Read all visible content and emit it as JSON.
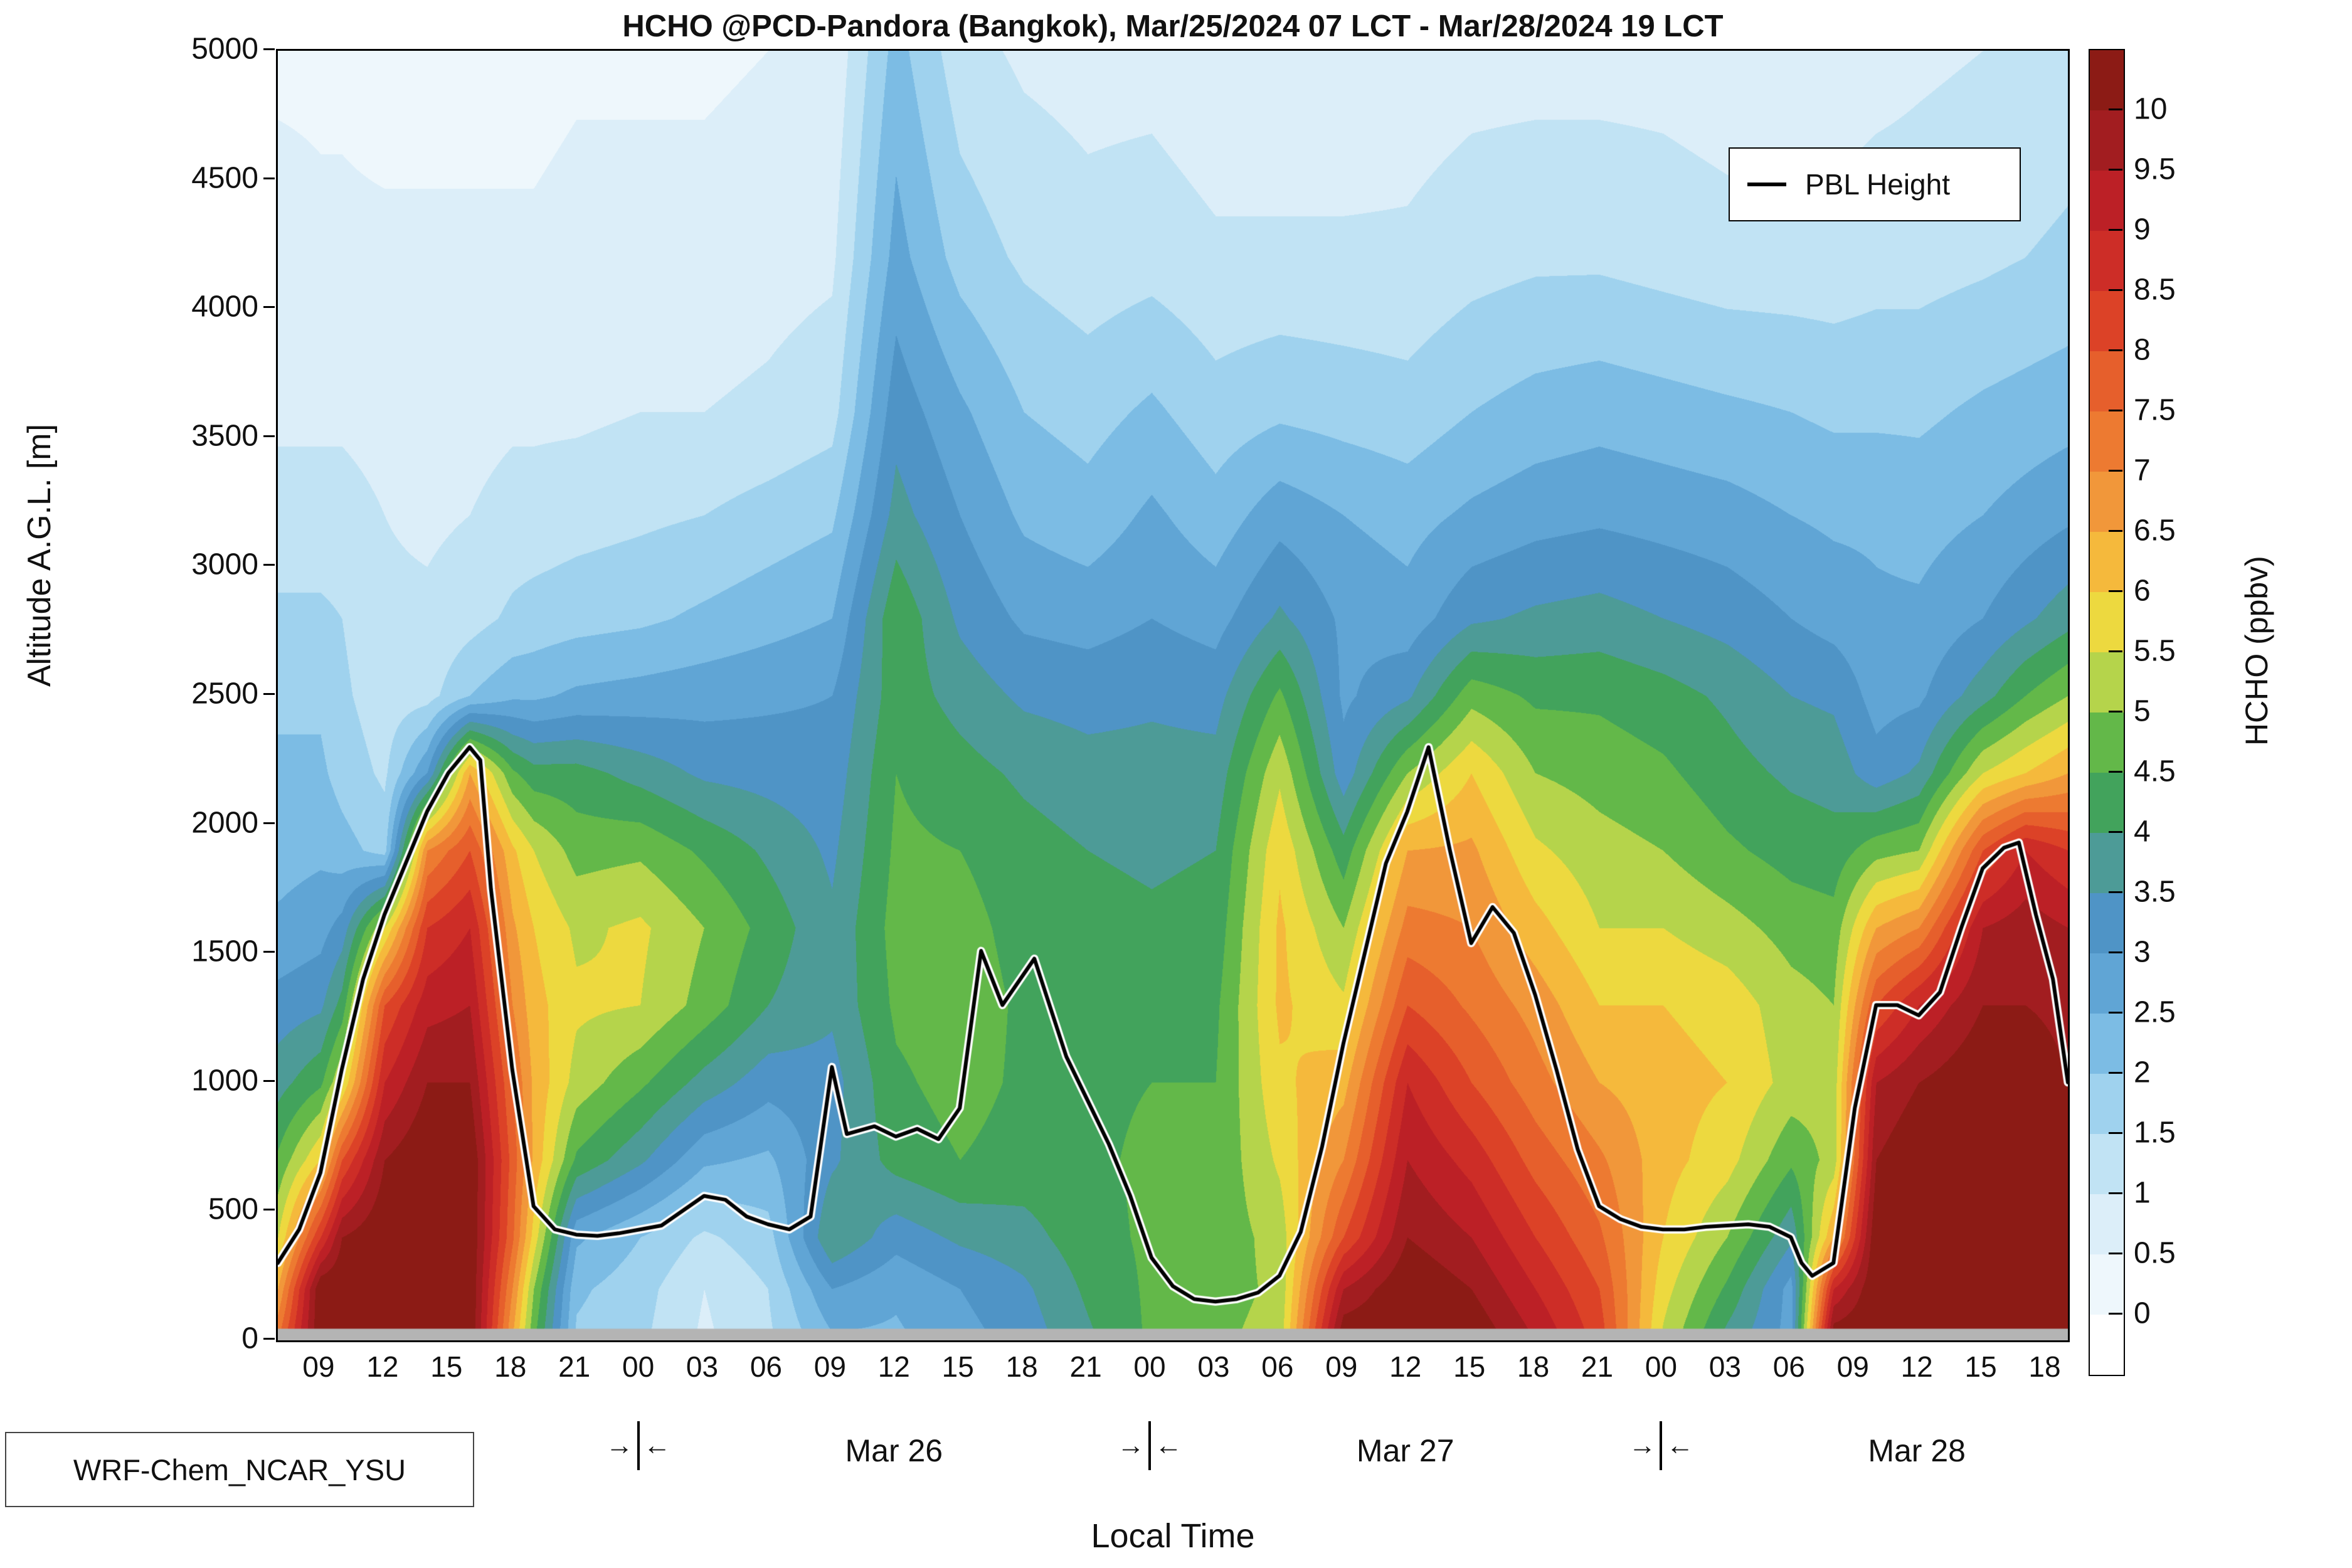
{
  "title": "HCHO @PCD-Pandora (Bangkok), Mar/25/2024 07 LCT - Mar/28/2024 19 LCT",
  "axes": {
    "y_label": "Altitude A.G.L. [m]",
    "x_label": "Local Time",
    "y_ticks": [
      0,
      500,
      1000,
      1500,
      2000,
      2500,
      3000,
      3500,
      4000,
      4500,
      5000
    ],
    "x_ticks": [
      {
        "t": 9,
        "label": "09"
      },
      {
        "t": 12,
        "label": "12"
      },
      {
        "t": 15,
        "label": "15"
      },
      {
        "t": 18,
        "label": "18"
      },
      {
        "t": 21,
        "label": "21"
      },
      {
        "t": 24,
        "label": "00"
      },
      {
        "t": 27,
        "label": "03"
      },
      {
        "t": 30,
        "label": "06"
      },
      {
        "t": 33,
        "label": "09"
      },
      {
        "t": 36,
        "label": "12"
      },
      {
        "t": 39,
        "label": "15"
      },
      {
        "t": 42,
        "label": "18"
      },
      {
        "t": 45,
        "label": "21"
      },
      {
        "t": 48,
        "label": "00"
      },
      {
        "t": 51,
        "label": "03"
      },
      {
        "t": 54,
        "label": "06"
      },
      {
        "t": 57,
        "label": "09"
      },
      {
        "t": 60,
        "label": "12"
      },
      {
        "t": 63,
        "label": "15"
      },
      {
        "t": 66,
        "label": "18"
      },
      {
        "t": 69,
        "label": "21"
      },
      {
        "t": 72,
        "label": "00"
      },
      {
        "t": 75,
        "label": "03"
      },
      {
        "t": 78,
        "label": "06"
      },
      {
        "t": 81,
        "label": "09"
      },
      {
        "t": 84,
        "label": "12"
      },
      {
        "t": 87,
        "label": "15"
      },
      {
        "t": 90,
        "label": "18"
      }
    ],
    "day_markers": [
      {
        "t": 24
      },
      {
        "t": 48
      },
      {
        "t": 72
      }
    ],
    "day_marker_left": "→",
    "day_marker_right": "←",
    "day_labels": [
      {
        "t": 36,
        "label": "Mar 26"
      },
      {
        "t": 60,
        "label": "Mar 27"
      },
      {
        "t": 84,
        "label": "Mar 28"
      }
    ]
  },
  "legend": {
    "label": "PBL Height",
    "line_color": "#000000"
  },
  "annotation": "WRF-Chem_NCAR_YSU",
  "colorbar": {
    "label": "HCHO (ppbv)",
    "ticks": [
      "0",
      "0.5",
      "1",
      "1.5",
      "2",
      "2.5",
      "3",
      "3.5",
      "4",
      "4.5",
      "5",
      "5.5",
      "6",
      "6.5",
      "7",
      "7.5",
      "8",
      "8.5",
      "9",
      "9.5",
      "10"
    ],
    "colors_bottom_to_top": [
      "#ffffff",
      "#eef7fc",
      "#dceef9",
      "#c1e3f4",
      "#9fd2ee",
      "#7cbce4",
      "#60a5d5",
      "#4f94c6",
      "#4d9b97",
      "#42a35c",
      "#63b849",
      "#b5d44b",
      "#edd93f",
      "#f5b93c",
      "#f1973a",
      "#ed7a31",
      "#e65f2c",
      "#dc4227",
      "#cd2d27",
      "#bc2026",
      "#a21d20",
      "#8c1b15"
    ]
  },
  "chart_data": {
    "type": "heatmap",
    "title": "HCHO @PCD-Pandora (Bangkok), Mar/25/2024 07 LCT - Mar/28/2024 19 LCT",
    "xlabel": "Local Time",
    "ylabel": "Altitude A.G.L. [m]",
    "value_units": "ppbv",
    "time_axis_hours_from_mar25_00": {
      "start": 7,
      "end": 91
    },
    "ylim": [
      0,
      5000
    ],
    "value_bins": {
      "min": 0,
      "max": 10,
      "step": 0.5
    },
    "gray_strip_below_m": 45,
    "gray_color": "#b4b4b4",
    "altitudes_m": [
      0,
      200,
      400,
      700,
      1000,
      1300,
      1600,
      1900,
      2200,
      2500,
      2800,
      3200,
      3600,
      4200,
      5000
    ],
    "times_h": [
      7,
      9,
      10,
      12,
      14,
      16,
      18,
      19,
      21,
      24,
      27,
      30,
      33,
      36,
      39,
      42,
      45,
      48,
      51,
      54,
      57,
      60,
      63,
      66,
      69,
      72,
      75,
      78,
      80,
      82,
      84,
      87,
      89,
      91
    ],
    "hcho_ppbv_columns_bottom_to_top": [
      [
        7.5,
        6.5,
        5.5,
        4.6,
        3.8,
        3.2,
        2.6,
        2.3,
        2.1,
        1.9,
        1.6,
        1.2,
        0.9,
        0.7,
        0.4
      ],
      [
        10.5,
        10.5,
        8.5,
        6.0,
        4.4,
        3.4,
        2.8,
        2.4,
        2.1,
        1.9,
        1.6,
        1.2,
        0.9,
        0.6,
        0.4
      ],
      [
        10.5,
        10.5,
        10.0,
        8.0,
        5.5,
        4.2,
        3.2,
        2.2,
        1.8,
        1.6,
        1.5,
        1.2,
        0.9,
        0.6,
        0.4
      ],
      [
        10.5,
        10.5,
        10.5,
        10.0,
        9.0,
        8.0,
        5.5,
        1.8,
        1.4,
        1.2,
        1.1,
        1.0,
        0.8,
        0.6,
        0.3
      ],
      [
        10.5,
        10.5,
        10.5,
        10.5,
        10.0,
        9.3,
        8.5,
        7.0,
        3.0,
        1.3,
        1.1,
        0.9,
        0.8,
        0.6,
        0.3
      ],
      [
        10.5,
        10.5,
        10.5,
        10.5,
        10.0,
        9.5,
        9.0,
        8.0,
        6.5,
        2.0,
        1.3,
        1.0,
        0.8,
        0.6,
        0.3
      ],
      [
        6.5,
        7.0,
        7.6,
        7.8,
        7.5,
        7.0,
        6.6,
        6.1,
        4.6,
        2.4,
        1.6,
        1.2,
        0.9,
        0.6,
        0.3
      ],
      [
        4.6,
        5.0,
        5.8,
        6.4,
        6.4,
        6.2,
        6.0,
        5.5,
        4.2,
        2.4,
        1.7,
        1.2,
        0.9,
        0.6,
        0.3
      ],
      [
        1.9,
        2.1,
        2.6,
        4.4,
        5.3,
        5.6,
        5.4,
        4.8,
        4.2,
        2.6,
        1.8,
        1.3,
        0.9,
        0.7,
        0.4
      ],
      [
        1.6,
        1.7,
        2.0,
        3.6,
        4.6,
        5.5,
        5.6,
        4.9,
        3.8,
        2.7,
        1.9,
        1.4,
        1.0,
        0.7,
        0.4
      ],
      [
        0.9,
        1.0,
        1.4,
        2.6,
        3.8,
        4.8,
        5.0,
        4.4,
        3.4,
        2.8,
        2.1,
        1.5,
        1.0,
        0.7,
        0.4
      ],
      [
        1.4,
        1.5,
        1.8,
        2.4,
        3.2,
        4.0,
        4.3,
        3.9,
        3.3,
        2.9,
        2.3,
        1.7,
        1.1,
        0.8,
        0.5
      ],
      [
        2.4,
        3.0,
        4.0,
        3.4,
        3.3,
        3.6,
        3.6,
        3.4,
        3.2,
        3.0,
        2.5,
        1.9,
        1.3,
        0.9,
        0.6
      ],
      [
        2.4,
        2.6,
        3.2,
        4.2,
        4.4,
        4.6,
        4.7,
        4.6,
        4.5,
        4.3,
        4.4,
        3.7,
        3.3,
        2.7,
        2.2
      ],
      [
        2.8,
        3.0,
        3.6,
        4.5,
        4.7,
        4.8,
        4.7,
        4.5,
        4.2,
        3.8,
        3.4,
        3.0,
        2.6,
        1.8,
        1.2
      ],
      [
        3.2,
        3.4,
        3.8,
        4.3,
        4.4,
        4.4,
        4.3,
        4.2,
        3.9,
        3.4,
        2.9,
        2.4,
        2.0,
        1.4,
        0.9
      ],
      [
        3.9,
        4.1,
        4.3,
        4.4,
        4.4,
        4.3,
        4.2,
        4.0,
        3.7,
        3.3,
        2.8,
        2.2,
        1.8,
        1.2,
        0.8
      ],
      [
        4.6,
        4.6,
        4.6,
        4.6,
        4.5,
        4.3,
        4.1,
        3.9,
        3.7,
        3.4,
        3.0,
        2.6,
        2.1,
        1.3,
        0.8
      ],
      [
        4.9,
        4.8,
        4.7,
        4.6,
        4.5,
        4.4,
        4.2,
        4.0,
        3.7,
        3.3,
        2.8,
        2.2,
        1.7,
        1.1,
        0.6
      ],
      [
        5.2,
        5.1,
        5.2,
        5.6,
        5.9,
        6.1,
        6.1,
        5.9,
        5.4,
        4.6,
        3.6,
        2.8,
        1.9,
        1.1,
        0.6
      ],
      [
        10.5,
        9.5,
        8.0,
        7.0,
        6.3,
        5.6,
        5.0,
        4.2,
        3.2,
        2.9,
        2.9,
        2.5,
        1.8,
        1.1,
        0.6
      ],
      [
        10.5,
        10.5,
        10.0,
        9.5,
        9.0,
        8.0,
        7.2,
        6.5,
        5.0,
        3.4,
        2.7,
        2.3,
        1.7,
        1.1,
        0.7
      ],
      [
        10.5,
        10.0,
        9.5,
        8.8,
        8.0,
        7.4,
        7.0,
        6.6,
        6.0,
        4.8,
        3.4,
        2.6,
        2.0,
        1.3,
        0.8
      ],
      [
        9.5,
        9.0,
        8.5,
        7.8,
        7.2,
        6.8,
        6.2,
        5.6,
        5.0,
        4.4,
        3.6,
        2.8,
        2.2,
        1.4,
        0.8
      ],
      [
        8.3,
        8.0,
        7.6,
        7.1,
        6.5,
        6.0,
        5.5,
        5.2,
        4.8,
        4.4,
        3.7,
        2.9,
        2.3,
        1.4,
        0.8
      ],
      [
        5.4,
        5.7,
        6.0,
        6.2,
        6.2,
        6.0,
        5.5,
        5.0,
        4.6,
        4.2,
        3.5,
        2.8,
        2.2,
        1.3,
        0.8
      ],
      [
        3.8,
        4.4,
        5.0,
        5.7,
        6.0,
        5.8,
        5.2,
        4.6,
        4.2,
        3.9,
        3.3,
        2.7,
        2.1,
        1.2,
        0.7
      ],
      [
        2.8,
        2.8,
        3.6,
        4.6,
        5.3,
        5.2,
        4.8,
        4.3,
        3.9,
        3.5,
        3.0,
        2.5,
        2.0,
        1.2,
        0.7
      ],
      [
        10.5,
        9.0,
        6.5,
        5.2,
        5.2,
        5.0,
        4.7,
        4.2,
        3.8,
        3.4,
        2.8,
        2.4,
        1.9,
        1.2,
        0.7
      ],
      [
        10.5,
        10.5,
        10.5,
        10.0,
        9.5,
        8.0,
        6.5,
        4.8,
        3.2,
        2.8,
        2.6,
        2.4,
        1.9,
        1.3,
        0.8
      ],
      [
        10.5,
        10.5,
        10.5,
        10.5,
        10.0,
        9.0,
        7.0,
        5.0,
        3.6,
        2.9,
        2.6,
        2.3,
        1.9,
        1.3,
        0.9
      ],
      [
        10.5,
        10.5,
        10.5,
        10.5,
        10.5,
        10.0,
        9.5,
        8.0,
        5.5,
        3.8,
        3.0,
        2.5,
        2.1,
        1.4,
        1.0
      ],
      [
        10.5,
        10.5,
        10.5,
        10.5,
        10.5,
        10.0,
        9.8,
        9.0,
        6.0,
        4.5,
        3.4,
        2.7,
        2.2,
        1.5,
        1.1
      ],
      [
        10.5,
        10.5,
        10.5,
        10.3,
        10.0,
        9.8,
        9.5,
        8.5,
        6.5,
        5.0,
        3.8,
        2.9,
        2.3,
        1.6,
        1.2
      ]
    ],
    "pbl_height_series": {
      "t_h": [
        7,
        8,
        9,
        10,
        11,
        12,
        13,
        14,
        15,
        16,
        16.5,
        17,
        18,
        19,
        20,
        21,
        22,
        23,
        25,
        27,
        28,
        29,
        30,
        31,
        32,
        33,
        33.7,
        35,
        36,
        37,
        38,
        39,
        40,
        41,
        42.5,
        44,
        45,
        46,
        47,
        48,
        49,
        50,
        51,
        52,
        53,
        54,
        55,
        56,
        57,
        58,
        59,
        60,
        61,
        62,
        63,
        64,
        65,
        66,
        67,
        68,
        69,
        70,
        71,
        72,
        73,
        74,
        75,
        76,
        77,
        78,
        78.5,
        79,
        80,
        81,
        82,
        83,
        84,
        85,
        86,
        87,
        88,
        88.7,
        89.5,
        90.3,
        91
      ],
      "height_m": [
        300,
        430,
        650,
        1050,
        1400,
        1650,
        1850,
        2050,
        2200,
        2300,
        2250,
        1750,
        1050,
        520,
        430,
        410,
        405,
        415,
        445,
        560,
        545,
        480,
        450,
        430,
        480,
        1060,
        800,
        830,
        790,
        820,
        780,
        900,
        1510,
        1300,
        1480,
        1100,
        930,
        760,
        560,
        320,
        210,
        160,
        150,
        160,
        185,
        250,
        420,
        750,
        1150,
        1500,
        1850,
        2050,
        2300,
        1900,
        1540,
        1680,
        1580,
        1340,
        1050,
        740,
        520,
        470,
        440,
        430,
        430,
        440,
        445,
        450,
        440,
        400,
        300,
        250,
        300,
        900,
        1300,
        1300,
        1260,
        1350,
        1600,
        1830,
        1910,
        1930,
        1650,
        1400,
        1000
      ]
    },
    "pbl_line_style": {
      "color": "#000000",
      "halo": "#ffffff"
    }
  }
}
